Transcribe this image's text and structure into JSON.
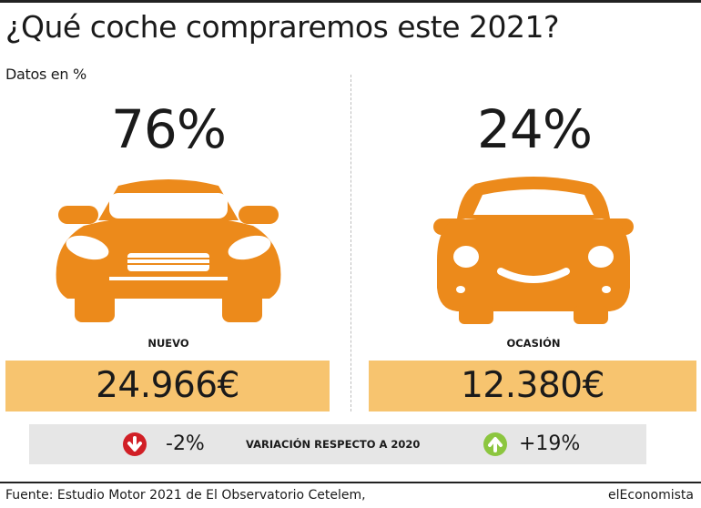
{
  "title": "¿Qué coche compraremos este 2021?",
  "subtitle": "Datos en %",
  "colors": {
    "car": "#ec8a1b",
    "price_box": "#f7c46f",
    "down": "#d11f26",
    "up": "#8cc63f",
    "variation_box": "#e6e6e6"
  },
  "chart_data": {
    "type": "table",
    "categories": [
      "NUEVO",
      "OCASIÓN"
    ],
    "series": [
      {
        "name": "Datos en %",
        "values": [
          76,
          24
        ]
      }
    ],
    "percent_labels": [
      "76%",
      "24%"
    ],
    "prices": [
      "24.966€",
      "12.380€"
    ],
    "price_values": [
      24966,
      12380
    ],
    "variation_label": "VARIACIÓN RESPECTO A 2020",
    "variations": [
      "-2%",
      "+19%"
    ],
    "variation_values": [
      -2,
      19
    ]
  },
  "footer": {
    "source": "Fuente: Estudio Motor 2021 de El Observatorio Cetelem,",
    "brand": "elEconomista"
  },
  "icons": {
    "car_new": "car-front-icon",
    "car_used": "compact-car-front-icon",
    "down": "arrow-down-circle-icon",
    "up": "arrow-up-circle-icon"
  }
}
